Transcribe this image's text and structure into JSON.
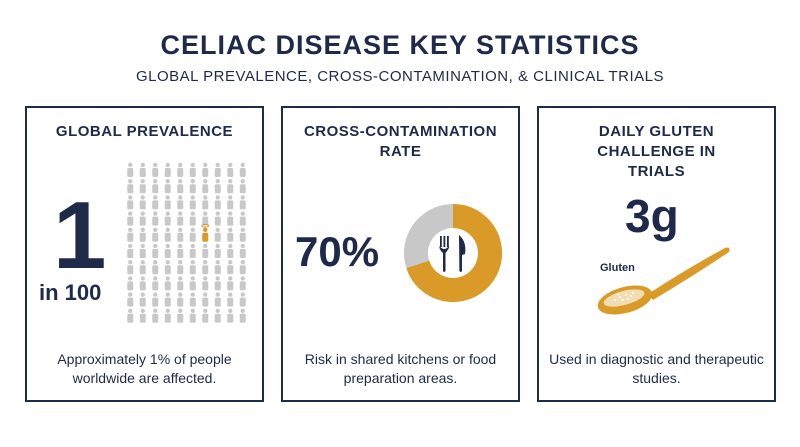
{
  "header": {
    "title": "CELIAC DISEASE KEY STATISTICS",
    "subtitle": "GLOBAL PREVALENCE, CROSS-CONTAMINATION, & CLINICAL TRIALS"
  },
  "colors": {
    "navy": "#1f2a4a",
    "accent": "#d99a27",
    "muted": "#c8c8c8"
  },
  "cards": [
    {
      "heading": "GLOBAL PREVALENCE",
      "big_value": "1",
      "sub_value": "in 100",
      "description": "Approximately 1% of people worldwide are affected.",
      "icon": "people-grid-icon",
      "grid_total": 100,
      "grid_highlighted": 1
    },
    {
      "heading": "CROSS-CONTAMINATION RATE",
      "big_value": "70%",
      "description": "Risk in shared kitchens or food preparation areas.",
      "icon": "fork-knife-icon",
      "donut_fraction": 0.7
    },
    {
      "heading": "DAILY GLUTEN CHALLENGE IN TRIALS",
      "big_value": "3g",
      "label": "Gluten",
      "description": "Used in diagnostic and therapeutic studies.",
      "icon": "spoon-icon"
    }
  ]
}
